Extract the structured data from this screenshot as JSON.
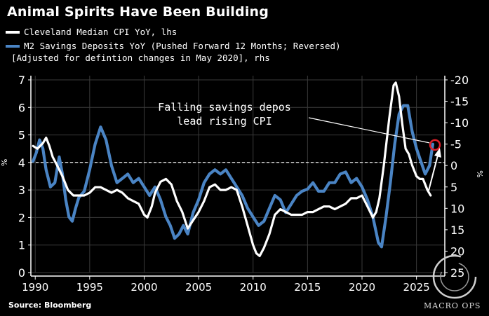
{
  "header": {
    "title": "Animal Spirits Have Been Building"
  },
  "legend": [
    {
      "text": "Cleveland Median CPI YoY, lhs",
      "color": "#ffffff"
    },
    {
      "text": "M2 Savings Deposits YoY (Pushed Forward 12 Months; Reversed)",
      "text2": "[Adjusted for defintion changes in May 2020], rhs",
      "color": "#4a84c4"
    }
  ],
  "annotation": {
    "line1": "Falling savings depos",
    "line2": "lead rising CPI"
  },
  "footer": {
    "source": "Source: Bloomberg",
    "watermark": "MACRO OPS"
  },
  "axis_unit_symbol": "%",
  "chart_data": {
    "type": "line",
    "title": "Animal Spirits Have Been Building",
    "x_range": [
      1989.6,
      2027.6
    ],
    "x_ticks": [
      1990,
      1995,
      2000,
      2005,
      2010,
      2015,
      2020,
      2025
    ],
    "x_tick_labels": [
      "1990",
      "1995",
      "2000",
      "2005",
      "2010",
      "2015",
      "2020",
      "2025"
    ],
    "y_left": {
      "label": "%",
      "range": [
        0,
        7
      ],
      "ticks": [
        0,
        1,
        2,
        3,
        4,
        5,
        6,
        7
      ],
      "tick_labels": [
        "0",
        "1",
        "2",
        "3",
        "4",
        "5",
        "6",
        "7"
      ]
    },
    "y_right": {
      "label": "%",
      "range": [
        25,
        -20
      ],
      "reversed": true,
      "ticks": [
        -20,
        -15,
        -10,
        -5,
        0,
        5,
        10,
        15,
        20,
        25
      ],
      "tick_labels": [
        "-20",
        "-15",
        "-10",
        "-5",
        "0",
        "5",
        "10",
        "15",
        "20",
        "25"
      ]
    },
    "reference_line": {
      "axis": "left",
      "value": 4,
      "style": "dashed"
    },
    "series": [
      {
        "name": "Cleveland Median CPI YoY, lhs",
        "axis": "left",
        "color": "#ffffff",
        "points": [
          [
            1989.8,
            4.6
          ],
          [
            1990.2,
            4.5
          ],
          [
            1990.7,
            4.7
          ],
          [
            1991.0,
            4.9
          ],
          [
            1991.3,
            4.6
          ],
          [
            1991.6,
            4.2
          ],
          [
            1992.0,
            3.9
          ],
          [
            1992.5,
            3.5
          ],
          [
            1993.0,
            3.0
          ],
          [
            1993.5,
            2.8
          ],
          [
            1994.0,
            2.8
          ],
          [
            1994.5,
            2.8
          ],
          [
            1995.0,
            2.9
          ],
          [
            1995.5,
            3.1
          ],
          [
            1996.0,
            3.1
          ],
          [
            1996.5,
            3.0
          ],
          [
            1997.0,
            2.9
          ],
          [
            1997.5,
            3.0
          ],
          [
            1998.0,
            2.9
          ],
          [
            1998.5,
            2.7
          ],
          [
            1999.0,
            2.6
          ],
          [
            1999.5,
            2.5
          ],
          [
            2000.0,
            2.1
          ],
          [
            2000.3,
            2.0
          ],
          [
            2000.7,
            2.4
          ],
          [
            2001.0,
            2.9
          ],
          [
            2001.5,
            3.3
          ],
          [
            2002.0,
            3.4
          ],
          [
            2002.5,
            3.2
          ],
          [
            2003.0,
            2.6
          ],
          [
            2003.5,
            2.2
          ],
          [
            2004.0,
            1.6
          ],
          [
            2004.5,
            1.9
          ],
          [
            2005.0,
            2.2
          ],
          [
            2005.5,
            2.6
          ],
          [
            2006.0,
            3.1
          ],
          [
            2006.5,
            3.2
          ],
          [
            2007.0,
            3.0
          ],
          [
            2007.5,
            3.0
          ],
          [
            2008.0,
            3.1
          ],
          [
            2008.5,
            3.0
          ],
          [
            2009.0,
            2.4
          ],
          [
            2009.5,
            1.7
          ],
          [
            2010.0,
            1.0
          ],
          [
            2010.3,
            0.7
          ],
          [
            2010.6,
            0.6
          ],
          [
            2011.0,
            0.9
          ],
          [
            2011.5,
            1.4
          ],
          [
            2012.0,
            2.1
          ],
          [
            2012.5,
            2.3
          ],
          [
            2013.0,
            2.2
          ],
          [
            2013.5,
            2.1
          ],
          [
            2014.0,
            2.1
          ],
          [
            2014.5,
            2.1
          ],
          [
            2015.0,
            2.2
          ],
          [
            2015.5,
            2.2
          ],
          [
            2016.0,
            2.3
          ],
          [
            2016.5,
            2.4
          ],
          [
            2017.0,
            2.4
          ],
          [
            2017.5,
            2.3
          ],
          [
            2018.0,
            2.4
          ],
          [
            2018.5,
            2.5
          ],
          [
            2019.0,
            2.7
          ],
          [
            2019.5,
            2.7
          ],
          [
            2020.0,
            2.8
          ],
          [
            2020.5,
            2.4
          ],
          [
            2021.0,
            2.0
          ],
          [
            2021.3,
            2.2
          ],
          [
            2021.6,
            2.7
          ],
          [
            2022.0,
            3.9
          ],
          [
            2022.5,
            5.6
          ],
          [
            2022.9,
            6.8
          ],
          [
            2023.1,
            6.9
          ],
          [
            2023.4,
            6.4
          ],
          [
            2023.7,
            5.4
          ],
          [
            2024.0,
            4.5
          ],
          [
            2024.3,
            4.3
          ],
          [
            2024.6,
            3.9
          ],
          [
            2025.0,
            3.5
          ],
          [
            2025.3,
            3.4
          ],
          [
            2025.6,
            3.4
          ],
          [
            2026.0,
            3.0
          ],
          [
            2026.3,
            2.8
          ]
        ]
      },
      {
        "name": "M2 Savings Deposits YoY (Pushed Forward 12 Months; Reversed) [Adjusted for defintion changes in May 2020], rhs",
        "axis": "right",
        "color": "#4a84c4",
        "points": [
          [
            1989.8,
            -1.0
          ],
          [
            1990.1,
            -3.0
          ],
          [
            1990.4,
            -6.0
          ],
          [
            1990.7,
            -4.0
          ],
          [
            1991.0,
            1.0
          ],
          [
            1991.4,
            5.0
          ],
          [
            1991.8,
            4.0
          ],
          [
            1992.2,
            -2.0
          ],
          [
            1992.5,
            2.0
          ],
          [
            1992.8,
            8.0
          ],
          [
            1993.1,
            12.0
          ],
          [
            1993.4,
            13.0
          ],
          [
            1993.7,
            10.0
          ],
          [
            1994.0,
            7.5
          ],
          [
            1994.5,
            6.0
          ],
          [
            1995.0,
            1.0
          ],
          [
            1995.5,
            -5.0
          ],
          [
            1996.0,
            -9.0
          ],
          [
            1996.5,
            -6.0
          ],
          [
            1997.0,
            0.0
          ],
          [
            1997.5,
            4.0
          ],
          [
            1998.0,
            3.0
          ],
          [
            1998.5,
            2.0
          ],
          [
            1999.0,
            4.0
          ],
          [
            1999.5,
            3.0
          ],
          [
            2000.0,
            5.0
          ],
          [
            2000.5,
            7.0
          ],
          [
            2001.0,
            5.0
          ],
          [
            2001.5,
            8.0
          ],
          [
            2002.0,
            12.0
          ],
          [
            2002.4,
            14.0
          ],
          [
            2002.8,
            17.0
          ],
          [
            2003.2,
            16.0
          ],
          [
            2003.6,
            14.0
          ],
          [
            2004.0,
            16.0
          ],
          [
            2004.5,
            11.0
          ],
          [
            2005.0,
            8.0
          ],
          [
            2005.5,
            4.0
          ],
          [
            2006.0,
            2.0
          ],
          [
            2006.5,
            1.0
          ],
          [
            2007.0,
            2.0
          ],
          [
            2007.5,
            1.0
          ],
          [
            2008.0,
            3.0
          ],
          [
            2008.5,
            5.0
          ],
          [
            2009.0,
            7.0
          ],
          [
            2009.5,
            10.0
          ],
          [
            2010.0,
            12.0
          ],
          [
            2010.5,
            14.0
          ],
          [
            2011.0,
            13.0
          ],
          [
            2011.5,
            10.0
          ],
          [
            2012.0,
            7.0
          ],
          [
            2012.5,
            8.0
          ],
          [
            2013.0,
            11.0
          ],
          [
            2013.5,
            9.0
          ],
          [
            2014.0,
            7.0
          ],
          [
            2014.5,
            6.0
          ],
          [
            2015.0,
            5.5
          ],
          [
            2015.5,
            4.0
          ],
          [
            2016.0,
            6.0
          ],
          [
            2016.5,
            6.0
          ],
          [
            2017.0,
            4.0
          ],
          [
            2017.5,
            4.0
          ],
          [
            2018.0,
            2.0
          ],
          [
            2018.5,
            1.5
          ],
          [
            2019.0,
            4.0
          ],
          [
            2019.5,
            3.0
          ],
          [
            2020.0,
            5.0
          ],
          [
            2020.5,
            8.0
          ],
          [
            2021.0,
            12.0
          ],
          [
            2021.5,
            18.0
          ],
          [
            2021.8,
            19.0
          ],
          [
            2022.2,
            12.0
          ],
          [
            2022.6,
            4.0
          ],
          [
            2023.0,
            -5.0
          ],
          [
            2023.4,
            -12.0
          ],
          [
            2023.8,
            -14.0
          ],
          [
            2024.2,
            -14.0
          ],
          [
            2024.6,
            -8.0
          ],
          [
            2025.0,
            -4.0
          ],
          [
            2025.4,
            -1.0
          ],
          [
            2025.8,
            2.0
          ],
          [
            2026.2,
            0.0
          ],
          [
            2026.5,
            -5.0
          ]
        ]
      }
    ],
    "annotations": [
      {
        "text": "Falling savings depos lead rising CPI",
        "points_to": [
          2026.7,
          -4.8
        ]
      }
    ]
  }
}
